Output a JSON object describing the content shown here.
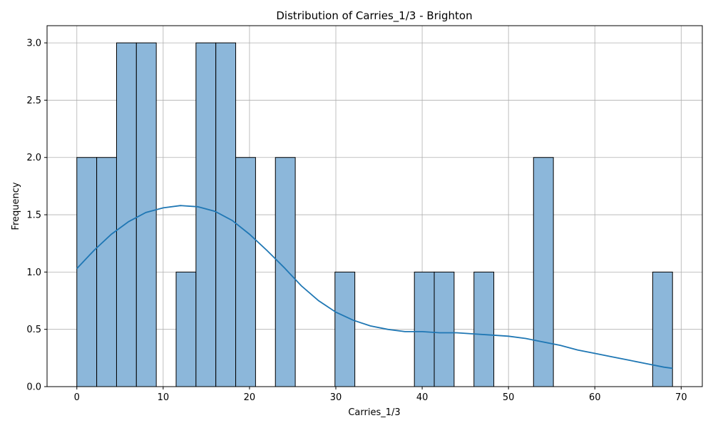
{
  "chart_data": {
    "type": "bar",
    "title": "Distribution of Carries_1/3 - Brighton",
    "xlabel": "Carries_1/3",
    "ylabel": "Frequency",
    "xlim": [
      -3.45,
      72.45
    ],
    "ylim": [
      0,
      3.15
    ],
    "grid": true,
    "bar_color": "#8cb7da",
    "bar_edge_color": "#000000",
    "kde_color": "#1f77b4",
    "x_ticks": [
      0,
      10,
      20,
      30,
      40,
      50,
      60,
      70
    ],
    "x_tick_labels": [
      "0",
      "10",
      "20",
      "30",
      "40",
      "50",
      "60",
      "70"
    ],
    "y_ticks": [
      0,
      0.5,
      1.0,
      1.5,
      2.0,
      2.5,
      3.0
    ],
    "y_tick_labels": [
      "0.0",
      "0.5",
      "1.0",
      "1.5",
      "2.0",
      "2.5",
      "3.0"
    ],
    "bins": [
      {
        "x0": 0.0,
        "x1": 2.3,
        "count": 2
      },
      {
        "x0": 2.3,
        "x1": 4.6,
        "count": 2
      },
      {
        "x0": 4.6,
        "x1": 6.9,
        "count": 3
      },
      {
        "x0": 6.9,
        "x1": 9.2,
        "count": 3
      },
      {
        "x0": 9.2,
        "x1": 11.5,
        "count": 0
      },
      {
        "x0": 11.5,
        "x1": 13.8,
        "count": 1
      },
      {
        "x0": 13.8,
        "x1": 16.1,
        "count": 3
      },
      {
        "x0": 16.1,
        "x1": 18.4,
        "count": 3
      },
      {
        "x0": 18.4,
        "x1": 20.7,
        "count": 2
      },
      {
        "x0": 20.7,
        "x1": 23.0,
        "count": 0
      },
      {
        "x0": 23.0,
        "x1": 25.3,
        "count": 2
      },
      {
        "x0": 25.3,
        "x1": 27.6,
        "count": 0
      },
      {
        "x0": 27.6,
        "x1": 29.9,
        "count": 0
      },
      {
        "x0": 29.9,
        "x1": 32.2,
        "count": 1
      },
      {
        "x0": 32.2,
        "x1": 34.5,
        "count": 0
      },
      {
        "x0": 34.5,
        "x1": 36.8,
        "count": 0
      },
      {
        "x0": 36.8,
        "x1": 39.1,
        "count": 0
      },
      {
        "x0": 39.1,
        "x1": 41.4,
        "count": 1
      },
      {
        "x0": 41.4,
        "x1": 43.7,
        "count": 1
      },
      {
        "x0": 43.7,
        "x1": 46.0,
        "count": 0
      },
      {
        "x0": 46.0,
        "x1": 48.3,
        "count": 1
      },
      {
        "x0": 48.3,
        "x1": 50.6,
        "count": 0
      },
      {
        "x0": 50.6,
        "x1": 52.9,
        "count": 0
      },
      {
        "x0": 52.9,
        "x1": 55.2,
        "count": 2
      },
      {
        "x0": 55.2,
        "x1": 57.5,
        "count": 0
      },
      {
        "x0": 57.5,
        "x1": 59.8,
        "count": 0
      },
      {
        "x0": 59.8,
        "x1": 62.1,
        "count": 0
      },
      {
        "x0": 62.1,
        "x1": 64.4,
        "count": 0
      },
      {
        "x0": 64.4,
        "x1": 66.7,
        "count": 0
      },
      {
        "x0": 66.7,
        "x1": 69.0,
        "count": 1
      }
    ],
    "kde": {
      "x": [
        0,
        2,
        4,
        6,
        8,
        10,
        12,
        14,
        16,
        18,
        20,
        22,
        24,
        26,
        28,
        30,
        32,
        34,
        36,
        38,
        40,
        42,
        44,
        46,
        48,
        50,
        52,
        54,
        56,
        58,
        60,
        62,
        64,
        66,
        68,
        69
      ],
      "y": [
        1.03,
        1.19,
        1.33,
        1.44,
        1.52,
        1.56,
        1.58,
        1.57,
        1.53,
        1.45,
        1.33,
        1.19,
        1.04,
        0.88,
        0.75,
        0.65,
        0.58,
        0.53,
        0.5,
        0.48,
        0.48,
        0.47,
        0.47,
        0.46,
        0.45,
        0.44,
        0.42,
        0.39,
        0.36,
        0.32,
        0.29,
        0.26,
        0.23,
        0.2,
        0.17,
        0.16
      ]
    }
  }
}
